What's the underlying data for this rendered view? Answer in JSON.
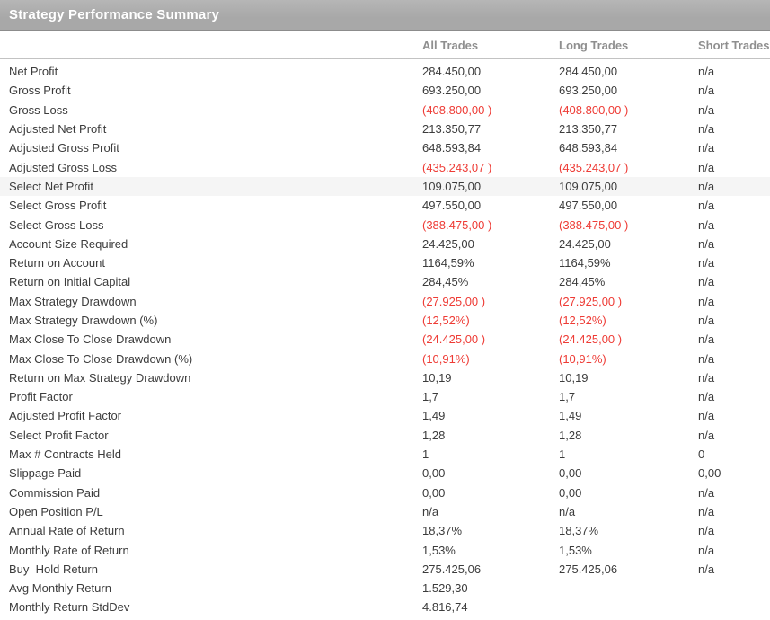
{
  "title": "Strategy Performance Summary",
  "columns": [
    "All Trades",
    "Long Trades",
    "Short Trades"
  ],
  "colors": {
    "title_bar_bg": "#a8a8a8",
    "title_bar_bg_light": "#b6b6b6",
    "title_text": "#ffffff",
    "column_header_text": "#8f8f8f",
    "value_text": "#3c3c3c",
    "negative_value": "#ee3b35",
    "highlight_row_bg": "#f5f5f5"
  },
  "table": {
    "rows": [
      {
        "label": "Net Profit",
        "all": "284.450,00",
        "long": "284.450,00",
        "short": "n/a"
      },
      {
        "label": "Gross Profit",
        "all": "693.250,00",
        "long": "693.250,00",
        "short": "n/a"
      },
      {
        "label": "Gross Loss",
        "all": "(408.800,00 )",
        "long": "(408.800,00 )",
        "short": "n/a"
      },
      {
        "label": "Adjusted Net Profit",
        "all": "213.350,77",
        "long": "213.350,77",
        "short": "n/a"
      },
      {
        "label": "Adjusted Gross Profit",
        "all": "648.593,84",
        "long": "648.593,84",
        "short": "n/a"
      },
      {
        "label": "Adjusted Gross Loss",
        "all": "(435.243,07 )",
        "long": "(435.243,07 )",
        "short": "n/a"
      },
      {
        "label": "Select Net Profit",
        "all": "109.075,00",
        "long": "109.075,00",
        "short": "n/a",
        "highlighted": true
      },
      {
        "label": "Select Gross Profit",
        "all": "497.550,00",
        "long": "497.550,00",
        "short": "n/a"
      },
      {
        "label": "Select Gross Loss",
        "all": "(388.475,00 )",
        "long": "(388.475,00 )",
        "short": "n/a"
      },
      {
        "label": "Account Size Required",
        "all": "24.425,00",
        "long": "24.425,00",
        "short": "n/a"
      },
      {
        "label": "Return on Account",
        "all": "1164,59%",
        "long": "1164,59%",
        "short": "n/a"
      },
      {
        "label": "Return on Initial Capital",
        "all": "284,45%",
        "long": "284,45%",
        "short": "n/a"
      },
      {
        "label": "Max Strategy Drawdown",
        "all": "(27.925,00 )",
        "long": "(27.925,00 )",
        "short": "n/a"
      },
      {
        "label": "Max Strategy Drawdown (%)",
        "all": "(12,52%)",
        "long": "(12,52%)",
        "short": "n/a"
      },
      {
        "label": "Max Close To Close Drawdown",
        "all": "(24.425,00 )",
        "long": "(24.425,00 )",
        "short": "n/a"
      },
      {
        "label": "Max Close To Close Drawdown (%)",
        "all": "(10,91%)",
        "long": "(10,91%)",
        "short": "n/a"
      },
      {
        "label": "Return on Max Strategy Drawdown",
        "all": "10,19",
        "long": "10,19",
        "short": "n/a"
      },
      {
        "label": "Profit Factor",
        "all": "1,7",
        "long": "1,7",
        "short": "n/a"
      },
      {
        "label": "Adjusted Profit Factor",
        "all": "1,49",
        "long": "1,49",
        "short": "n/a"
      },
      {
        "label": "Select Profit Factor",
        "all": "1,28",
        "long": "1,28",
        "short": "n/a"
      },
      {
        "label": "Max # Contracts Held",
        "all": "1",
        "long": "1",
        "short": "0"
      },
      {
        "label": "Slippage Paid",
        "all": "0,00",
        "long": "0,00",
        "short": "0,00"
      },
      {
        "label": "Commission Paid",
        "all": "0,00",
        "long": "0,00",
        "short": "n/a"
      },
      {
        "label": "Open Position P/L",
        "all": "n/a",
        "long": "n/a",
        "short": "n/a"
      },
      {
        "label": "Annual Rate of Return",
        "all": "18,37%",
        "long": "18,37%",
        "short": "n/a"
      },
      {
        "label": "Monthly Rate of Return",
        "all": "1,53%",
        "long": "1,53%",
        "short": "n/a"
      },
      {
        "label": "Buy  Hold Return",
        "all": "275.425,06",
        "long": "275.425,06",
        "short": "n/a"
      },
      {
        "label": "Avg Monthly Return",
        "all": "1.529,30",
        "long": "",
        "short": ""
      },
      {
        "label": "Monthly Return StdDev",
        "all": "4.816,74",
        "long": "",
        "short": ""
      }
    ]
  }
}
